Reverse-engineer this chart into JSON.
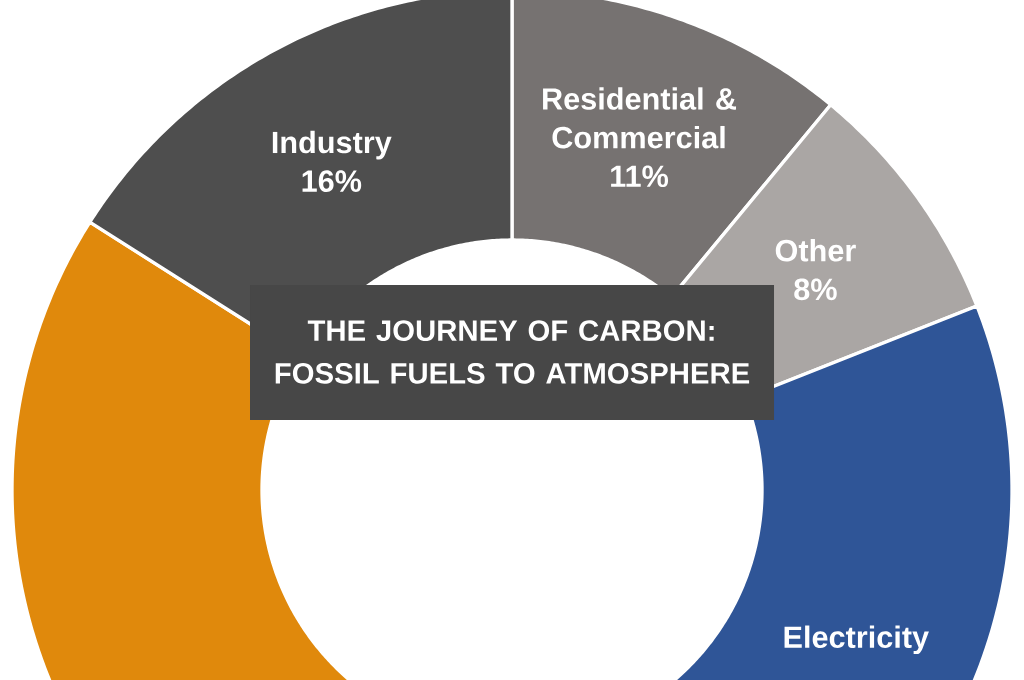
{
  "chart_data": {
    "type": "donut",
    "title": "THE JOURNEY OF CARBON: FOSSIL FUELS TO ATMOSPHERE",
    "categories": [
      "Residential & Commercial",
      "Other",
      "Electricity",
      null,
      "Industry"
    ],
    "values": [
      11,
      8,
      42,
      23,
      16
    ],
    "value_labels": [
      "11%",
      "8%",
      null,
      null,
      "16%"
    ],
    "colors": [
      "#767271",
      "#aaa6a4",
      "#2f5597",
      "#e0890c",
      "#4e4e4e"
    ]
  }
}
